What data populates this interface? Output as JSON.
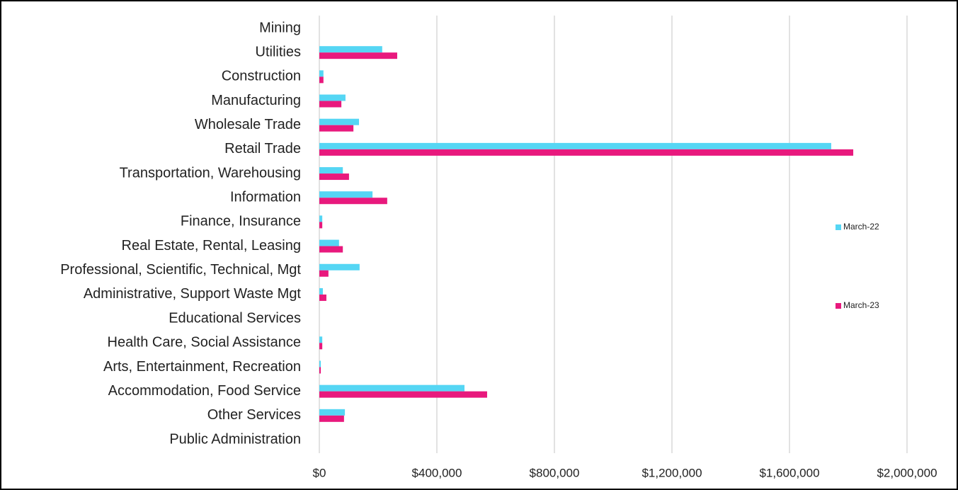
{
  "chart_data": {
    "type": "hbar",
    "categories": [
      "Mining",
      "Utilities",
      "Construction",
      "Manufacturing",
      "Wholesale Trade",
      "Retail Trade",
      "Transportation, Warehousing",
      "Information",
      "Finance, Insurance",
      "Real Estate, Rental, Leasing",
      "Professional, Scientific, Technical, Mgt",
      "Administrative, Support Waste Mgt",
      "Educational Services",
      "Health Care, Social Assistance",
      "Arts, Entertainment, Recreation",
      "Accommodation, Food Service",
      "Other Services",
      "Public Administration"
    ],
    "series": [
      {
        "name": "March-22",
        "color": "#55d6f4",
        "values": [
          0,
          214000,
          14000,
          89000,
          135000,
          1742000,
          80000,
          181000,
          10000,
          67000,
          137000,
          12000,
          0,
          10000,
          5000,
          494000,
          87000,
          0
        ]
      },
      {
        "name": "March-23",
        "color": "#e8197d",
        "values": [
          0,
          265000,
          14000,
          75000,
          116000,
          1817000,
          101000,
          231000,
          10000,
          80000,
          31000,
          24000,
          0,
          10000,
          5000,
          571000,
          84000,
          0
        ]
      }
    ],
    "xlim": [
      0,
      2000000
    ],
    "xticks": [
      {
        "value": 0,
        "label": "$0"
      },
      {
        "value": 400000,
        "label": "$400,000"
      },
      {
        "value": 800000,
        "label": "$800,000"
      },
      {
        "value": 1200000,
        "label": "$1,200,000"
      },
      {
        "value": 1600000,
        "label": "$1,600,000"
      },
      {
        "value": 2000000,
        "label": "$2,000,000"
      }
    ],
    "grid": true,
    "legend": "right"
  }
}
